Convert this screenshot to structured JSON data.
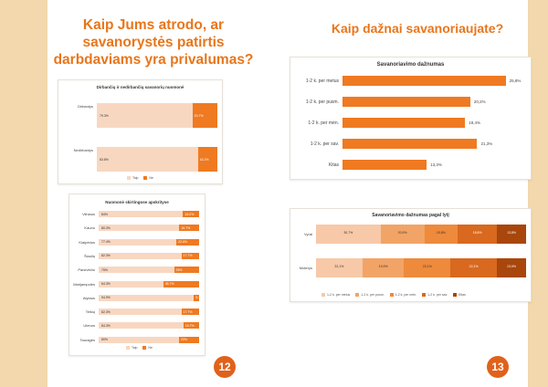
{
  "left_page": {
    "title_lines": [
      "Kaip Jums atrodo, ar",
      "savanorystės patirtis",
      "darbdaviams yra privalumas?"
    ],
    "page_number": "12",
    "chart1": {
      "title": "Dirbančių ir nedirbančių savanorių nuomonė",
      "rows": [
        {
          "label": "Dirbantys",
          "yes": 79.3,
          "yes_label": "79.3%",
          "no_label": "20.7%"
        },
        {
          "label": "Nedirbantys",
          "yes": 83.8,
          "yes_label": "83.8%",
          "no_label": "16.2%"
        }
      ],
      "legend": [
        "Taip",
        "Ne"
      ]
    },
    "chart2": {
      "title": "Nuomonė skirtingose apskrityse",
      "rows": [
        {
          "label": "Vilniaus",
          "yes": 84,
          "yes_label": "84%",
          "no_label": "16.0%"
        },
        {
          "label": "Kauno",
          "yes": 80.3,
          "yes_label": "80.3%",
          "no_label": "19.7%"
        },
        {
          "label": "Klaipėdos",
          "yes": 77.4,
          "yes_label": "77.4%",
          "no_label": "22.6%"
        },
        {
          "label": "Šiaulių",
          "yes": 82.3,
          "yes_label": "82.3%",
          "no_label": "17.7%"
        },
        {
          "label": "Panevėžio",
          "yes": 75,
          "yes_label": "75%",
          "no_label": "25%"
        },
        {
          "label": "Marijampolės",
          "yes": 64.3,
          "yes_label": "64.3%",
          "no_label": "35.7%"
        },
        {
          "label": "Alytaus",
          "yes": 94.9,
          "yes_label": "94.9%",
          "no_label": "5.1%"
        },
        {
          "label": "Telšių",
          "yes": 82.3,
          "yes_label": "82.3%",
          "no_label": "17.7%"
        },
        {
          "label": "Utenos",
          "yes": 84.3,
          "yes_label": "84.3%",
          "no_label": "15.7%"
        },
        {
          "label": "Tauragės",
          "yes": 80,
          "yes_label": "80%",
          "no_label": "20%"
        }
      ],
      "legend": [
        "Taip",
        "Ne"
      ]
    }
  },
  "right_page": {
    "title": "Kaip dažnai savanoriaujate?",
    "page_number": "13",
    "chart3": {
      "title": "Savanoriavimo dažnumas",
      "rows": [
        {
          "label": "1-2 k. per metus",
          "value": 25.8,
          "value_label": "25,8%"
        },
        {
          "label": "1-2 k. per pusm.",
          "value": 20.2,
          "value_label": "20,2%"
        },
        {
          "label": "1-2 k. per mėn.",
          "value": 19.4,
          "value_label": "19,4%"
        },
        {
          "label": "1-2 k. per sav.",
          "value": 21.3,
          "value_label": "21,3%"
        },
        {
          "label": "Kitas",
          "value": 13.3,
          "value_label": "13,3%"
        }
      ]
    },
    "chart4": {
      "title": "Savanoriavimo dažnumas pagal lytį",
      "rows": [
        {
          "label": "Vyrai",
          "segments": [
            30.7,
            20.9,
            15.8,
            18.8,
            13.8
          ],
          "labels": [
            "30,7%",
            "20,9%",
            "15,8%",
            "18,8%",
            "13,8%"
          ]
        },
        {
          "label": "Moterys",
          "segments": [
            22.1,
            19.9,
            22.1,
            22.1,
            13.9
          ],
          "labels": [
            "22,1%",
            "19,9%",
            "22,1%",
            "22,1%",
            "13,9%"
          ]
        }
      ],
      "legend": [
        "1-2 k. per metus",
        "1-2 k. per pusm.",
        "1-2 k. per mėn.",
        "1-2 k. per sav.",
        "Kitas"
      ],
      "colors": [
        "#f7c9a8",
        "#f2a466",
        "#ee8a3c",
        "#d8691e",
        "#a8460c"
      ]
    }
  },
  "colors": {
    "accent": "#e8761b",
    "yes": "#f8d7c1",
    "no": "#ef7a21",
    "tan": "#f2d8ac",
    "badge": "#e0621a"
  },
  "chart_data": [
    {
      "type": "bar",
      "title": "Dirbančių ir nedirbančių savanorių nuomonė",
      "categories": [
        "Dirbantys",
        "Nedirbantys"
      ],
      "series": [
        {
          "name": "Taip",
          "values": [
            79.3,
            83.8
          ]
        },
        {
          "name": "Ne",
          "values": [
            20.7,
            16.2
          ]
        }
      ],
      "stacked": true,
      "orientation": "horizontal",
      "xlim": [
        0,
        100
      ],
      "legend": "bottom"
    },
    {
      "type": "bar",
      "title": "Nuomonė skirtingose apskrityse",
      "categories": [
        "Vilniaus",
        "Kauno",
        "Klaipėdos",
        "Šiaulių",
        "Panevėžio",
        "Marijampolės",
        "Alytaus",
        "Telšių",
        "Utenos",
        "Tauragės"
      ],
      "series": [
        {
          "name": "Taip",
          "values": [
            84,
            80.3,
            77.4,
            82.3,
            75,
            64.3,
            94.9,
            82.3,
            84.3,
            80
          ]
        },
        {
          "name": "Ne",
          "values": [
            16,
            19.7,
            22.6,
            17.7,
            25,
            35.7,
            5.1,
            17.7,
            15.7,
            20
          ]
        }
      ],
      "stacked": true,
      "orientation": "horizontal",
      "xlim": [
        0,
        100
      ],
      "legend": "bottom"
    },
    {
      "type": "bar",
      "title": "Savanoriavimo dažnumas",
      "categories": [
        "1-2 k. per metus",
        "1-2 k. per pusm.",
        "1-2 k. per mėn.",
        "1-2 k. per sav.",
        "Kitas"
      ],
      "values": [
        25.8,
        20.2,
        19.4,
        21.3,
        13.3
      ],
      "orientation": "horizontal"
    },
    {
      "type": "bar",
      "title": "Savanoriavimo dažnumas pagal lytį",
      "categories": [
        "Vyrai",
        "Moterys"
      ],
      "series": [
        {
          "name": "1-2 k. per metus",
          "values": [
            30.7,
            22.1
          ]
        },
        {
          "name": "1-2 k. per pusm.",
          "values": [
            20.9,
            19.9
          ]
        },
        {
          "name": "1-2 k. per mėn.",
          "values": [
            15.8,
            22.1
          ]
        },
        {
          "name": "1-2 k. per sav.",
          "values": [
            18.8,
            22.1
          ]
        },
        {
          "name": "Kitas",
          "values": [
            13.8,
            13.9
          ]
        }
      ],
      "stacked": true,
      "orientation": "horizontal",
      "xlim": [
        0,
        100
      ],
      "legend": "bottom"
    }
  ]
}
